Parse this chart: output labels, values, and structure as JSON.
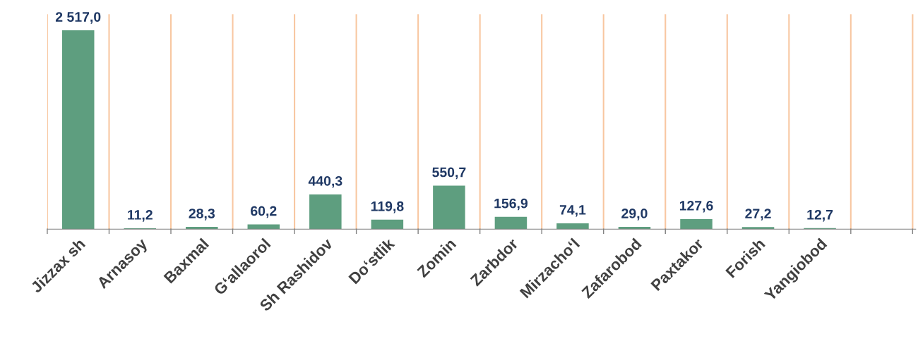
{
  "chart_data": {
    "type": "bar",
    "categories": [
      "Jizzax sh",
      "Arnasoy",
      "Baxmal",
      "G‘allaorol",
      "Sh Rashidov",
      "Do‘stlik",
      "Zomin",
      "Zarbdor",
      "Mirzacho‘l",
      "Zafarobod",
      "Paxtakor",
      "Forish",
      "Yangiobod",
      null
    ],
    "values": [
      2517.0,
      11.2,
      28.3,
      60.2,
      440.3,
      119.8,
      550.7,
      156.9,
      74.1,
      29.0,
      127.6,
      27.2,
      12.7,
      null
    ],
    "value_labels": [
      "2 517,0",
      "11,2",
      "28,3",
      "60,2",
      "440,3",
      "119,8",
      "550,7",
      "156,9",
      "74,1",
      "29,0",
      "127,6",
      "27,2",
      "12,7",
      null
    ],
    "color": "#5e9e7f",
    "ylim": [
      0,
      2720
    ],
    "grid": "x",
    "tick_labels": "x"
  }
}
